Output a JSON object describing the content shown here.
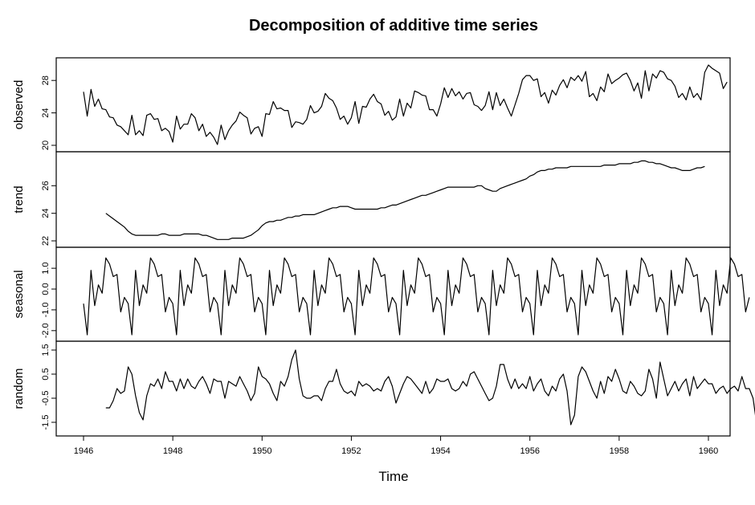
{
  "chart_data": {
    "type": "line",
    "title": "Decomposition of additive time series",
    "xlabel": "Time",
    "x_start": 1946,
    "frequency": 12,
    "xlim": [
      1946,
      1960
    ],
    "x_ticks": [
      "1946",
      "1948",
      "1950",
      "1952",
      "1954",
      "1956",
      "1958",
      "1960"
    ],
    "grid": false,
    "panels": [
      {
        "name": "observed",
        "ylabel": "observed",
        "ylim": [
          20,
          30
        ],
        "y_ticks": [
          "20",
          "24",
          "28"
        ],
        "values": [
          26.6,
          23.6,
          26.9,
          24.8,
          25.7,
          24.5,
          24.4,
          23.5,
          23.4,
          22.5,
          22.3,
          21.8,
          21.3,
          23.7,
          21.3,
          21.8,
          21.2,
          23.7,
          23.9,
          23.2,
          23.3,
          21.8,
          22.1,
          21.7,
          20.4,
          23.6,
          22.0,
          22.6,
          22.6,
          23.9,
          23.4,
          21.8,
          22.6,
          21.1,
          21.6,
          21.0,
          20.1,
          22.5,
          20.7,
          21.8,
          22.5,
          23.0,
          24.1,
          23.7,
          23.4,
          21.4,
          22.1,
          22.3,
          21.1,
          23.9,
          23.8,
          25.4,
          24.5,
          24.6,
          24.3,
          24.3,
          22.2,
          22.9,
          22.8,
          22.6,
          23.2,
          24.9,
          24.0,
          24.2,
          24.8,
          26.4,
          25.8,
          25.5,
          24.6,
          23.2,
          23.6,
          22.6,
          23.4,
          25.4,
          22.7,
          24.8,
          24.7,
          25.7,
          26.3,
          25.4,
          25.1,
          23.7,
          24.2,
          23.1,
          23.5,
          25.7,
          23.6,
          25.2,
          24.6,
          26.7,
          26.5,
          26.2,
          26.1,
          24.4,
          24.4,
          23.6,
          25.1,
          27.1,
          25.9,
          27.0,
          26.1,
          26.6,
          25.7,
          26.4,
          26.5,
          25.0,
          24.8,
          24.3,
          24.9,
          26.6,
          24.4,
          26.5,
          24.9,
          25.7,
          24.6,
          23.6,
          25.0,
          26.4,
          28.1,
          28.6,
          28.6,
          28.0,
          28.2,
          26.0,
          26.5,
          25.2,
          26.8,
          26.2,
          27.4,
          28.1,
          27.1,
          28.4,
          28.0,
          28.6,
          27.9,
          29.1,
          26.0,
          26.4,
          25.5,
          27.2,
          26.6,
          28.8,
          27.6,
          28.0,
          28.3,
          28.7,
          28.9,
          28.0,
          26.7,
          27.7,
          25.8,
          29.2,
          26.7,
          28.8,
          28.3,
          29.2,
          29.0,
          28.2,
          28.0,
          27.3,
          25.9,
          26.4,
          25.6,
          27.2,
          25.9,
          26.4,
          25.6,
          29.0,
          29.9,
          29.5,
          29.2,
          28.9,
          27.0,
          27.8
        ]
      },
      {
        "name": "trend",
        "ylabel": "trend",
        "ylim": [
          22,
          28
        ],
        "y_ticks": [
          "22",
          "24",
          "26"
        ],
        "values": [
          null,
          null,
          null,
          null,
          null,
          null,
          24.0,
          23.8,
          23.6,
          23.4,
          23.2,
          23.0,
          22.7,
          22.5,
          22.4,
          22.4,
          22.4,
          22.4,
          22.4,
          22.4,
          22.4,
          22.5,
          22.5,
          22.4,
          22.4,
          22.4,
          22.4,
          22.5,
          22.5,
          22.5,
          22.5,
          22.5,
          22.4,
          22.4,
          22.3,
          22.2,
          22.1,
          22.1,
          22.1,
          22.1,
          22.2,
          22.2,
          22.2,
          22.2,
          22.3,
          22.4,
          22.6,
          22.8,
          23.1,
          23.3,
          23.4,
          23.4,
          23.5,
          23.5,
          23.6,
          23.7,
          23.7,
          23.8,
          23.8,
          23.9,
          23.9,
          23.9,
          23.9,
          24.0,
          24.1,
          24.2,
          24.3,
          24.4,
          24.4,
          24.5,
          24.5,
          24.5,
          24.4,
          24.3,
          24.3,
          24.3,
          24.3,
          24.3,
          24.3,
          24.3,
          24.4,
          24.4,
          24.5,
          24.6,
          24.6,
          24.7,
          24.8,
          24.9,
          25.0,
          25.1,
          25.2,
          25.3,
          25.3,
          25.4,
          25.5,
          25.6,
          25.7,
          25.8,
          25.9,
          25.9,
          25.9,
          25.9,
          25.9,
          25.9,
          25.9,
          25.9,
          26.0,
          26.0,
          25.8,
          25.7,
          25.6,
          25.6,
          25.8,
          25.9,
          26.0,
          26.1,
          26.2,
          26.3,
          26.4,
          26.5,
          26.7,
          26.8,
          27.0,
          27.1,
          27.1,
          27.2,
          27.2,
          27.3,
          27.3,
          27.3,
          27.3,
          27.4,
          27.4,
          27.4,
          27.4,
          27.4,
          27.4,
          27.4,
          27.4,
          27.4,
          27.5,
          27.5,
          27.5,
          27.5,
          27.6,
          27.6,
          27.6,
          27.6,
          27.7,
          27.7,
          27.8,
          27.8,
          27.7,
          27.7,
          27.6,
          27.6,
          27.5,
          27.4,
          27.3,
          27.3,
          27.2,
          27.1,
          27.1,
          27.1,
          27.2,
          27.3,
          27.3,
          27.4,
          null,
          null,
          null,
          null,
          null,
          null
        ]
      },
      {
        "name": "seasonal",
        "ylabel": "seasonal",
        "ylim": [
          -2.2,
          1.7
        ],
        "y_ticks": [
          "-2.0",
          "-1.0",
          "0.0",
          "1.0"
        ],
        "values": [
          -0.7,
          -2.2,
          0.9,
          -0.8,
          0.2,
          -0.2,
          1.5,
          1.2,
          0.6,
          0.7,
          -1.1,
          -0.4,
          -0.7,
          -2.2,
          0.9,
          -0.8,
          0.2,
          -0.2,
          1.5,
          1.2,
          0.6,
          0.7,
          -1.1,
          -0.4,
          -0.7,
          -2.2,
          0.9,
          -0.8,
          0.2,
          -0.2,
          1.5,
          1.2,
          0.6,
          0.7,
          -1.1,
          -0.4,
          -0.7,
          -2.2,
          0.9,
          -0.8,
          0.2,
          -0.2,
          1.5,
          1.2,
          0.6,
          0.7,
          -1.1,
          -0.4,
          -0.7,
          -2.2,
          0.9,
          -0.8,
          0.2,
          -0.2,
          1.5,
          1.2,
          0.6,
          0.7,
          -1.1,
          -0.4,
          -0.7,
          -2.2,
          0.9,
          -0.8,
          0.2,
          -0.2,
          1.5,
          1.2,
          0.6,
          0.7,
          -1.1,
          -0.4,
          -0.7,
          -2.2,
          0.9,
          -0.8,
          0.2,
          -0.2,
          1.5,
          1.2,
          0.6,
          0.7,
          -1.1,
          -0.4,
          -0.7,
          -2.2,
          0.9,
          -0.8,
          0.2,
          -0.2,
          1.5,
          1.2,
          0.6,
          0.7,
          -1.1,
          -0.4,
          -0.7,
          -2.2,
          0.9,
          -0.8,
          0.2,
          -0.2,
          1.5,
          1.2,
          0.6,
          0.7,
          -1.1,
          -0.4,
          -0.7,
          -2.2,
          0.9,
          -0.8,
          0.2,
          -0.2,
          1.5,
          1.2,
          0.6,
          0.7,
          -1.1,
          -0.4,
          -0.7,
          -2.2,
          0.9,
          -0.8,
          0.2,
          -0.2,
          1.5,
          1.2,
          0.6,
          0.7,
          -1.1,
          -0.4,
          -0.7,
          -2.2,
          0.9,
          -0.8,
          0.2,
          -0.2,
          1.5,
          1.2,
          0.6,
          0.7,
          -1.1,
          -0.4,
          -0.7,
          -2.2,
          0.9,
          -0.8,
          0.2,
          -0.2,
          1.5,
          1.2,
          0.6,
          0.7,
          -1.1,
          -0.4,
          -0.7,
          -2.2,
          0.9,
          -0.8,
          0.2,
          -0.2,
          1.5,
          1.2,
          0.6,
          0.7,
          -1.1,
          -0.4,
          -0.7,
          -2.2,
          0.9,
          -0.8,
          0.2,
          -0.2,
          1.5,
          1.2,
          0.6,
          0.7,
          -1.1,
          -0.4
        ]
      },
      {
        "name": "random",
        "ylabel": "random",
        "ylim": [
          -1.8,
          1.6
        ],
        "y_ticks": [
          "-1.5",
          "-0.5",
          "0.5",
          "1.5"
        ],
        "values": [
          null,
          null,
          null,
          null,
          null,
          null,
          -0.9,
          -0.9,
          -0.6,
          -0.1,
          -0.3,
          -0.2,
          0.8,
          0.5,
          -0.4,
          -1.1,
          -1.4,
          -0.4,
          0.1,
          0.0,
          0.3,
          -0.1,
          0.6,
          0.2,
          0.2,
          -0.2,
          0.3,
          -0.1,
          0.3,
          0.0,
          -0.1,
          0.2,
          0.4,
          0.1,
          -0.3,
          0.3,
          0.2,
          0.2,
          -0.5,
          0.2,
          0.1,
          0.0,
          0.4,
          0.1,
          -0.2,
          -0.6,
          -0.3,
          0.8,
          0.4,
          0.3,
          0.1,
          -0.3,
          -0.6,
          0.2,
          0.0,
          0.4,
          1.1,
          1.5,
          0.3,
          -0.4,
          -0.5,
          -0.5,
          -0.4,
          -0.4,
          -0.6,
          -0.1,
          0.2,
          0.2,
          0.7,
          0.1,
          -0.2,
          -0.3,
          -0.2,
          -0.4,
          0.2,
          0.0,
          0.1,
          0.0,
          -0.2,
          -0.1,
          -0.2,
          0.2,
          0.4,
          0.0,
          -0.7,
          -0.3,
          0.1,
          0.4,
          0.3,
          0.1,
          -0.1,
          -0.3,
          0.2,
          -0.3,
          -0.1,
          0.3,
          0.2,
          0.2,
          0.3,
          -0.1,
          -0.2,
          -0.1,
          0.2,
          0.0,
          0.5,
          0.6,
          0.3,
          0.0,
          -0.3,
          -0.6,
          -0.5,
          0.0,
          0.9,
          0.9,
          0.3,
          -0.1,
          0.3,
          -0.1,
          0.1,
          -0.1,
          0.4,
          -0.2,
          0.1,
          0.3,
          -0.2,
          -0.4,
          0.0,
          -0.2,
          0.3,
          0.5,
          -0.2,
          -1.6,
          -1.2,
          0.4,
          0.8,
          0.6,
          0.2,
          -0.2,
          -0.5,
          0.2,
          -0.3,
          0.4,
          0.2,
          0.7,
          0.3,
          -0.2,
          -0.3,
          0.2,
          0.0,
          -0.3,
          -0.4,
          -0.2,
          0.7,
          0.3,
          -0.5,
          1.0,
          0.3,
          -0.4,
          -0.1,
          0.2,
          -0.2,
          0.1,
          0.3,
          -0.4,
          0.4,
          -0.1,
          0.1,
          0.3,
          0.1,
          0.1,
          -0.3,
          -0.1,
          0.0,
          -0.3,
          -0.1,
          0.0,
          -0.2,
          0.4,
          -0.1,
          -0.1,
          -0.5,
          -1.6
        ]
      }
    ]
  }
}
